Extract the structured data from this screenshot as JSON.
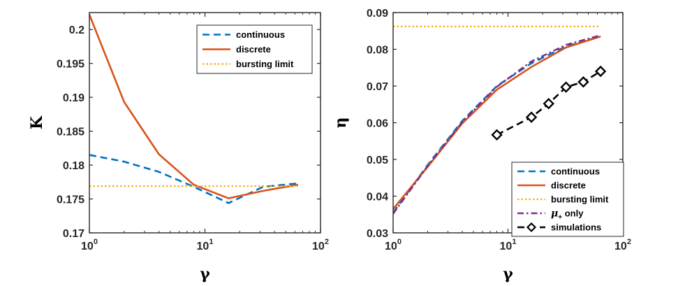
{
  "chart_data": [
    {
      "type": "line",
      "xscale": "log",
      "xlabel": "γ",
      "ylabel": "K",
      "xlim": [
        1,
        100
      ],
      "ylim": [
        0.17,
        0.2025
      ],
      "yticks": [
        0.17,
        0.175,
        0.18,
        0.185,
        0.19,
        0.195,
        0.2
      ],
      "ytick_labels": [
        "0.17",
        "0.175",
        "0.18",
        "0.185",
        "0.19",
        "0.195",
        "0.2"
      ],
      "xticks": [
        1,
        10,
        100
      ],
      "xtick_labels": [
        {
          "base": "10",
          "exp": "0"
        },
        {
          "base": "10",
          "exp": "1"
        },
        {
          "base": "10",
          "exp": "2"
        }
      ],
      "legend_position": "top-right",
      "series": [
        {
          "name": "continuous",
          "style": "dashed",
          "color": "#0072BD",
          "x": [
            1,
            2,
            4,
            8,
            16,
            32,
            64
          ],
          "y": [
            0.1815,
            0.1805,
            0.179,
            0.1768,
            0.1744,
            0.1768,
            0.1773
          ]
        },
        {
          "name": "discrete",
          "style": "solid",
          "color": "#D95319",
          "x": [
            1,
            2,
            4,
            8,
            16,
            32,
            64
          ],
          "y": [
            0.2022,
            0.1893,
            0.1816,
            0.1771,
            0.1751,
            0.1762,
            0.1771
          ]
        },
        {
          "name": "bursting limit",
          "style": "dotted",
          "color": "#EDB120",
          "x": [
            1,
            64
          ],
          "y": [
            0.1769,
            0.1769
          ]
        }
      ]
    },
    {
      "type": "line",
      "xscale": "log",
      "xlabel": "γ",
      "ylabel": "η",
      "xlim": [
        1,
        100
      ],
      "ylim": [
        0.03,
        0.09
      ],
      "yticks": [
        0.03,
        0.04,
        0.05,
        0.06,
        0.07,
        0.08,
        0.09
      ],
      "ytick_labels": [
        "0.03",
        "0.04",
        "0.05",
        "0.06",
        "0.07",
        "0.08",
        "0.09"
      ],
      "xticks": [
        1,
        10,
        100
      ],
      "xtick_labels": [
        {
          "base": "10",
          "exp": "0"
        },
        {
          "base": "10",
          "exp": "1"
        },
        {
          "base": "10",
          "exp": "2"
        }
      ],
      "legend_position": "bottom-right",
      "series": [
        {
          "name": "continuous",
          "style": "dashed",
          "color": "#0072BD",
          "x": [
            1,
            2,
            4,
            8,
            16,
            32,
            64
          ],
          "y": [
            0.0355,
            0.0485,
            0.0605,
            0.07,
            0.0762,
            0.0808,
            0.0835
          ]
        },
        {
          "name": "discrete",
          "style": "solid",
          "color": "#D95319",
          "x": [
            1,
            2,
            4,
            8,
            16,
            32,
            64
          ],
          "y": [
            0.0365,
            0.048,
            0.0598,
            0.069,
            0.0752,
            0.0805,
            0.0835
          ]
        },
        {
          "name": "bursting limit",
          "style": "dotted",
          "color": "#EDB120",
          "x": [
            1,
            64
          ],
          "y": [
            0.0862,
            0.0862
          ]
        },
        {
          "name": "μ+ only",
          "label_main": "μ",
          "label_sub": "+",
          "label_rest": " only",
          "style": "dashdot",
          "color": "#7E2F8E",
          "x": [
            1,
            2,
            4,
            8,
            16,
            32,
            64
          ],
          "y": [
            0.0352,
            0.0482,
            0.0602,
            0.0698,
            0.0767,
            0.0812,
            0.0838
          ]
        },
        {
          "name": "simulations",
          "style": "dashed-diamond",
          "color": "#000000",
          "x": [
            8,
            16,
            22.6,
            32,
            45.3,
            64
          ],
          "y": [
            0.0567,
            0.0615,
            0.0652,
            0.0697,
            0.0711,
            0.074
          ]
        }
      ]
    }
  ]
}
